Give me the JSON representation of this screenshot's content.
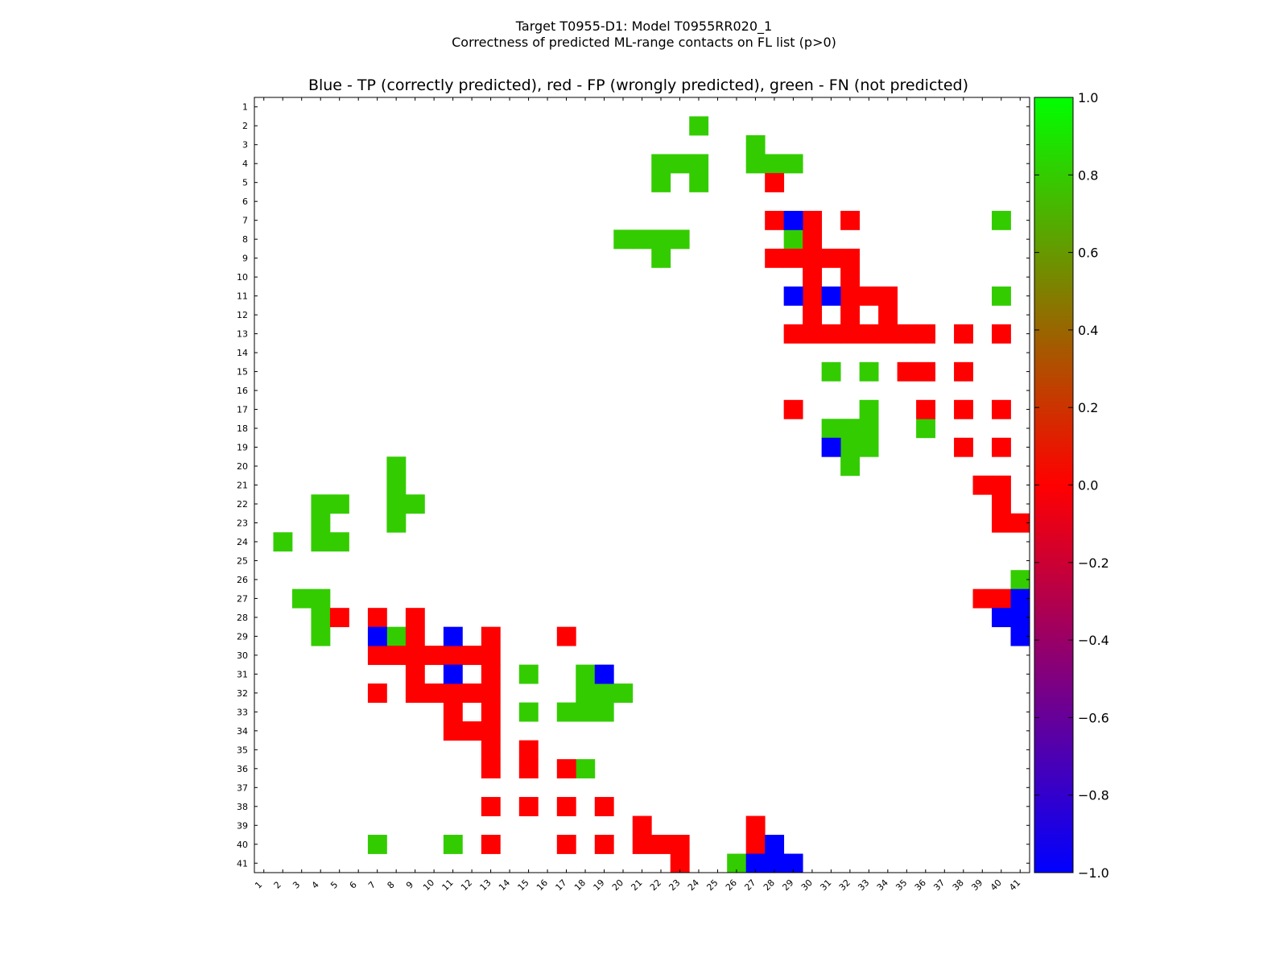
{
  "figure": {
    "title_line1": "Target T0955-D1: Model T0955RR020_1",
    "title_line2": "Correctness of predicted ML-range contacts on FL list (p>0)"
  },
  "chart_data": {
    "type": "heatmap",
    "title": "Blue - TP (correctly predicted), red - FP (wrongly predicted), green - FN (not predicted)",
    "n": 41,
    "x_ticks": [
      1,
      2,
      3,
      4,
      5,
      6,
      7,
      8,
      9,
      10,
      11,
      12,
      13,
      14,
      15,
      16,
      17,
      18,
      19,
      20,
      21,
      22,
      23,
      24,
      25,
      26,
      27,
      28,
      29,
      30,
      31,
      32,
      33,
      34,
      35,
      36,
      37,
      38,
      39,
      40,
      41
    ],
    "y_ticks": [
      1,
      2,
      3,
      4,
      5,
      6,
      7,
      8,
      9,
      10,
      11,
      12,
      13,
      14,
      15,
      16,
      17,
      18,
      19,
      20,
      21,
      22,
      23,
      24,
      25,
      26,
      27,
      28,
      29,
      30,
      31,
      32,
      33,
      34,
      35,
      36,
      37,
      38,
      39,
      40,
      41
    ],
    "value_legend": {
      "TP": -1.0,
      "FP": 0.0,
      "FN": 0.8
    },
    "colors": {
      "TP": "#0000ff",
      "FP": "#ff0000",
      "FN": "#33cc00"
    },
    "colorbar": {
      "min": -1.0,
      "max": 1.0,
      "ticks": [
        -1.0,
        -0.8,
        -0.6,
        -0.4,
        -0.2,
        0.0,
        0.2,
        0.4,
        0.6,
        0.8,
        1.0
      ],
      "tick_labels": [
        "−1.0",
        "−0.8",
        "−0.6",
        "−0.4",
        "−0.2",
        "0.0",
        "0.2",
        "0.4",
        "0.6",
        "0.8",
        "1.0"
      ]
    },
    "cells": {
      "TP": [
        [
          7,
          29
        ],
        [
          11,
          29
        ],
        [
          11,
          31
        ],
        [
          19,
          31
        ],
        [
          27,
          41
        ],
        [
          28,
          40
        ],
        [
          28,
          41
        ],
        [
          29,
          41
        ],
        [
          29,
          7
        ],
        [
          29,
          11
        ],
        [
          31,
          11
        ],
        [
          31,
          19
        ],
        [
          40,
          28
        ],
        [
          41,
          27
        ],
        [
          41,
          28
        ],
        [
          41,
          29
        ]
      ],
      "FP": [
        [
          5,
          28
        ],
        [
          7,
          28
        ],
        [
          7,
          30
        ],
        [
          7,
          32
        ],
        [
          8,
          30
        ],
        [
          9,
          28
        ],
        [
          9,
          29
        ],
        [
          9,
          30
        ],
        [
          9,
          31
        ],
        [
          9,
          32
        ],
        [
          10,
          30
        ],
        [
          10,
          32
        ],
        [
          11,
          30
        ],
        [
          11,
          32
        ],
        [
          11,
          33
        ],
        [
          11,
          34
        ],
        [
          12,
          30
        ],
        [
          12,
          32
        ],
        [
          12,
          34
        ],
        [
          13,
          29
        ],
        [
          13,
          30
        ],
        [
          13,
          31
        ],
        [
          13,
          32
        ],
        [
          13,
          33
        ],
        [
          13,
          34
        ],
        [
          13,
          35
        ],
        [
          13,
          36
        ],
        [
          13,
          38
        ],
        [
          13,
          40
        ],
        [
          15,
          35
        ],
        [
          15,
          36
        ],
        [
          15,
          38
        ],
        [
          17,
          29
        ],
        [
          17,
          36
        ],
        [
          17,
          38
        ],
        [
          17,
          40
        ],
        [
          19,
          38
        ],
        [
          19,
          40
        ],
        [
          21,
          39
        ],
        [
          21,
          40
        ],
        [
          22,
          40
        ],
        [
          23,
          40
        ],
        [
          23,
          41
        ],
        [
          27,
          39
        ],
        [
          27,
          40
        ],
        [
          28,
          5
        ],
        [
          28,
          7
        ],
        [
          28,
          9
        ],
        [
          29,
          9
        ],
        [
          29,
          13
        ],
        [
          29,
          17
        ],
        [
          30,
          7
        ],
        [
          30,
          8
        ],
        [
          30,
          9
        ],
        [
          30,
          10
        ],
        [
          30,
          11
        ],
        [
          30,
          12
        ],
        [
          30,
          13
        ],
        [
          31,
          9
        ],
        [
          31,
          13
        ],
        [
          32,
          7
        ],
        [
          32,
          9
        ],
        [
          32,
          10
        ],
        [
          32,
          11
        ],
        [
          32,
          12
        ],
        [
          32,
          13
        ],
        [
          33,
          11
        ],
        [
          33,
          13
        ],
        [
          34,
          11
        ],
        [
          34,
          12
        ],
        [
          34,
          13
        ],
        [
          35,
          13
        ],
        [
          35,
          15
        ],
        [
          36,
          13
        ],
        [
          36,
          15
        ],
        [
          36,
          17
        ],
        [
          38,
          13
        ],
        [
          38,
          15
        ],
        [
          38,
          17
        ],
        [
          38,
          19
        ],
        [
          39,
          21
        ],
        [
          39,
          27
        ],
        [
          40,
          13
        ],
        [
          40,
          17
        ],
        [
          40,
          19
        ],
        [
          40,
          21
        ],
        [
          40,
          22
        ],
        [
          40,
          23
        ],
        [
          40,
          27
        ],
        [
          41,
          23
        ]
      ],
      "FN": [
        [
          2,
          24
        ],
        [
          3,
          27
        ],
        [
          4,
          22
        ],
        [
          4,
          23
        ],
        [
          4,
          24
        ],
        [
          4,
          27
        ],
        [
          4,
          28
        ],
        [
          4,
          29
        ],
        [
          5,
          22
        ],
        [
          5,
          24
        ],
        [
          7,
          40
        ],
        [
          8,
          20
        ],
        [
          8,
          21
        ],
        [
          8,
          22
        ],
        [
          8,
          23
        ],
        [
          8,
          29
        ],
        [
          9,
          22
        ],
        [
          11,
          40
        ],
        [
          15,
          31
        ],
        [
          15,
          33
        ],
        [
          17,
          33
        ],
        [
          18,
          31
        ],
        [
          18,
          32
        ],
        [
          18,
          33
        ],
        [
          18,
          36
        ],
        [
          19,
          32
        ],
        [
          19,
          33
        ],
        [
          20,
          8
        ],
        [
          20,
          32
        ],
        [
          21,
          8
        ],
        [
          22,
          4
        ],
        [
          22,
          5
        ],
        [
          22,
          8
        ],
        [
          22,
          9
        ],
        [
          23,
          4
        ],
        [
          23,
          8
        ],
        [
          24,
          2
        ],
        [
          24,
          4
        ],
        [
          24,
          5
        ],
        [
          26,
          41
        ],
        [
          27,
          3
        ],
        [
          27,
          4
        ],
        [
          28,
          4
        ],
        [
          29,
          4
        ],
        [
          29,
          8
        ],
        [
          31,
          15
        ],
        [
          31,
          18
        ],
        [
          32,
          18
        ],
        [
          32,
          19
        ],
        [
          32,
          20
        ],
        [
          33,
          15
        ],
        [
          33,
          17
        ],
        [
          33,
          18
        ],
        [
          33,
          19
        ],
        [
          36,
          18
        ],
        [
          40,
          7
        ],
        [
          40,
          11
        ],
        [
          41,
          26
        ]
      ]
    }
  }
}
